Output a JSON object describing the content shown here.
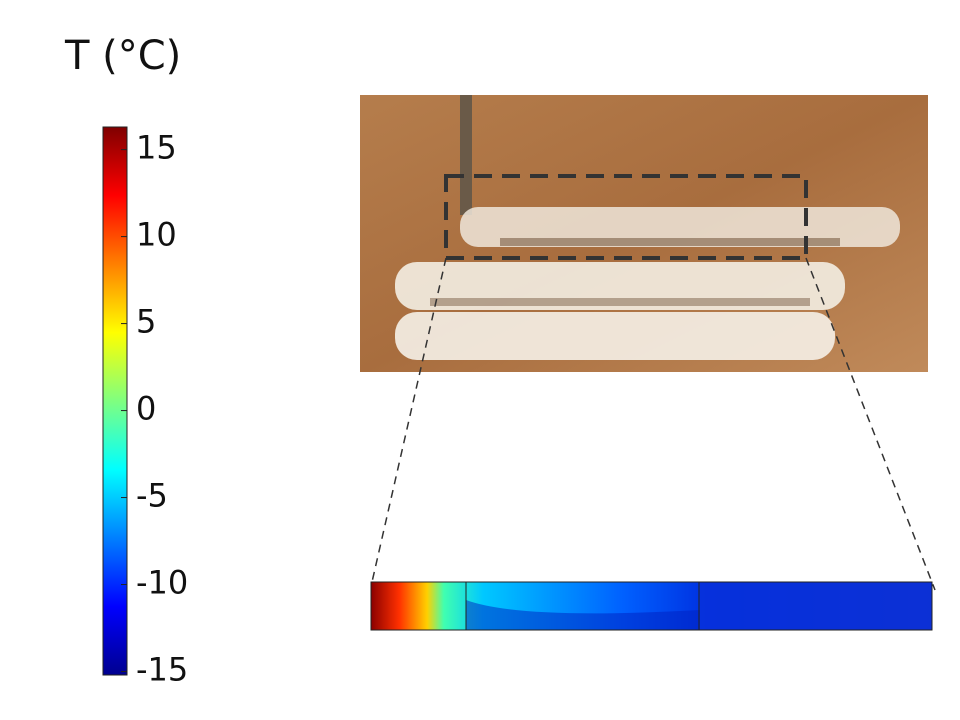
{
  "colorbar": {
    "title": "T (°C)",
    "lim": [
      -15.2,
      16.3
    ],
    "ticks": [
      -15,
      -10,
      -5,
      0,
      5,
      10,
      15
    ]
  }
}
